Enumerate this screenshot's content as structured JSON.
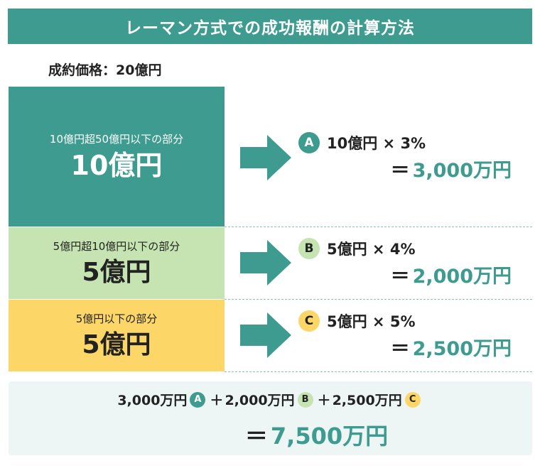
{
  "title": "レーマン方式での成功報酬の計算方法",
  "price_label": "成約価格：20億円",
  "tiers": [
    {
      "caption": "10億円超50億円以下の部分",
      "amount": "10億円"
    },
    {
      "caption": "5億円超10億円以下の部分",
      "amount": "5億円"
    },
    {
      "caption": "5億円以下の部分",
      "amount": "5億円"
    }
  ],
  "calcs": [
    {
      "badge": "A",
      "formula": "10億円 × 3%",
      "equals": "＝",
      "result": "3,000万円"
    },
    {
      "badge": "B",
      "formula": "5億円 × 4%",
      "equals": "＝",
      "result": "2,000万円"
    },
    {
      "badge": "C",
      "formula": "5億円 × 5%",
      "equals": "＝",
      "result": "2,500万円"
    }
  ],
  "total": {
    "part_a": "3,000万円",
    "badge_a": "A",
    "plus1": "＋",
    "part_b": "2,000万円",
    "badge_b": "B",
    "plus2": "＋",
    "part_c": "2,500万円",
    "badge_c": "C",
    "equals": "＝",
    "result": "7,500万円"
  },
  "colors": {
    "teal": "#3d9b8f",
    "green_light": "#c6e4b1",
    "yellow": "#fcd767",
    "total_bg": "#edf6f4"
  }
}
